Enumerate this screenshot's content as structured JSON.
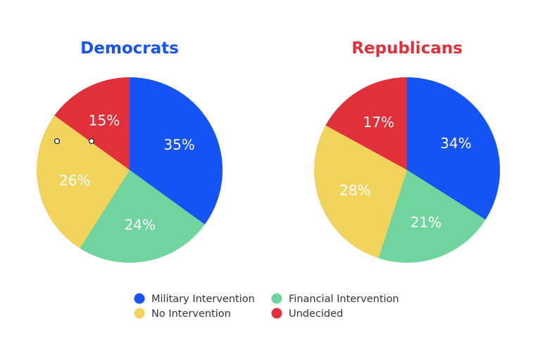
{
  "chart_data": [
    {
      "type": "pie",
      "title": "Democrats",
      "title_color": "#1553F5",
      "slices": [
        {
          "label": "Military Intervention",
          "value": 35,
          "text": "35%"
        },
        {
          "label": "Financial Intervention",
          "value": 24,
          "text": "24%"
        },
        {
          "label": "No Intervention",
          "value": 26,
          "text": "26%"
        },
        {
          "label": "Undecided",
          "value": 15,
          "text": "15%"
        }
      ]
    },
    {
      "type": "pie",
      "title": "Republicans",
      "title_color": "#E0303A",
      "slices": [
        {
          "label": "Military Intervention",
          "value": 34,
          "text": "34%"
        },
        {
          "label": "Financial Intervention",
          "value": 21,
          "text": "21%"
        },
        {
          "label": "No Intervention",
          "value": 28,
          "text": "28%"
        },
        {
          "label": "Undecided",
          "value": 17,
          "text": "17%"
        }
      ]
    }
  ],
  "legend": [
    {
      "label": "Military Intervention",
      "color": "#1553F5"
    },
    {
      "label": "Financial Intervention",
      "color": "#6FD49E"
    },
    {
      "label": "No Intervention",
      "color": "#F2D35C"
    },
    {
      "label": "Undecided",
      "color": "#E0303A"
    }
  ],
  "colors": {
    "Military Intervention": "#1553F5",
    "Financial Intervention": "#6FD49E",
    "No Intervention": "#F2D35C",
    "Undecided": "#E0303A"
  }
}
